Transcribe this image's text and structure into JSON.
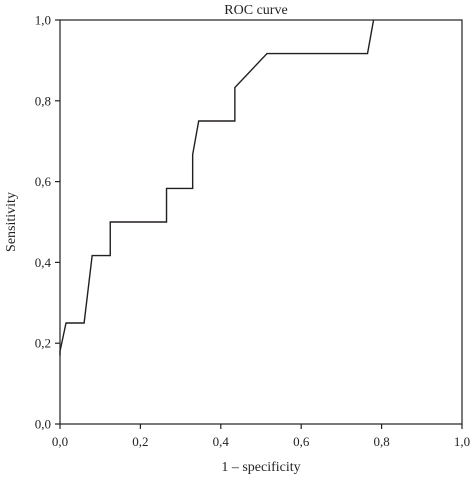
{
  "chart_data": {
    "type": "line",
    "title": "ROC curve",
    "xlabel": "1 – specificity",
    "ylabel": "Sensitivity",
    "xlim": [
      0,
      1
    ],
    "ylim": [
      0,
      1
    ],
    "x_ticks": [
      "0,0",
      "0,2",
      "0,4",
      "0,6",
      "0,8",
      "1,0"
    ],
    "y_ticks": [
      "0,0",
      "0,2",
      "0,4",
      "0,6",
      "0,8",
      "1,0"
    ],
    "grid": false,
    "legend": "none",
    "series": [
      {
        "line_color": "#231f20",
        "points": [
          [
            0.0,
            0.17
          ],
          [
            0.0,
            0.18
          ],
          [
            0.015,
            0.25
          ],
          [
            0.06,
            0.25
          ],
          [
            0.08,
            0.417
          ],
          [
            0.125,
            0.417
          ],
          [
            0.125,
            0.5
          ],
          [
            0.265,
            0.5
          ],
          [
            0.265,
            0.583
          ],
          [
            0.33,
            0.583
          ],
          [
            0.33,
            0.667
          ],
          [
            0.345,
            0.75
          ],
          [
            0.435,
            0.75
          ],
          [
            0.435,
            0.833
          ],
          [
            0.515,
            0.917
          ],
          [
            0.765,
            0.917
          ],
          [
            0.78,
            1.0
          ]
        ]
      }
    ]
  }
}
